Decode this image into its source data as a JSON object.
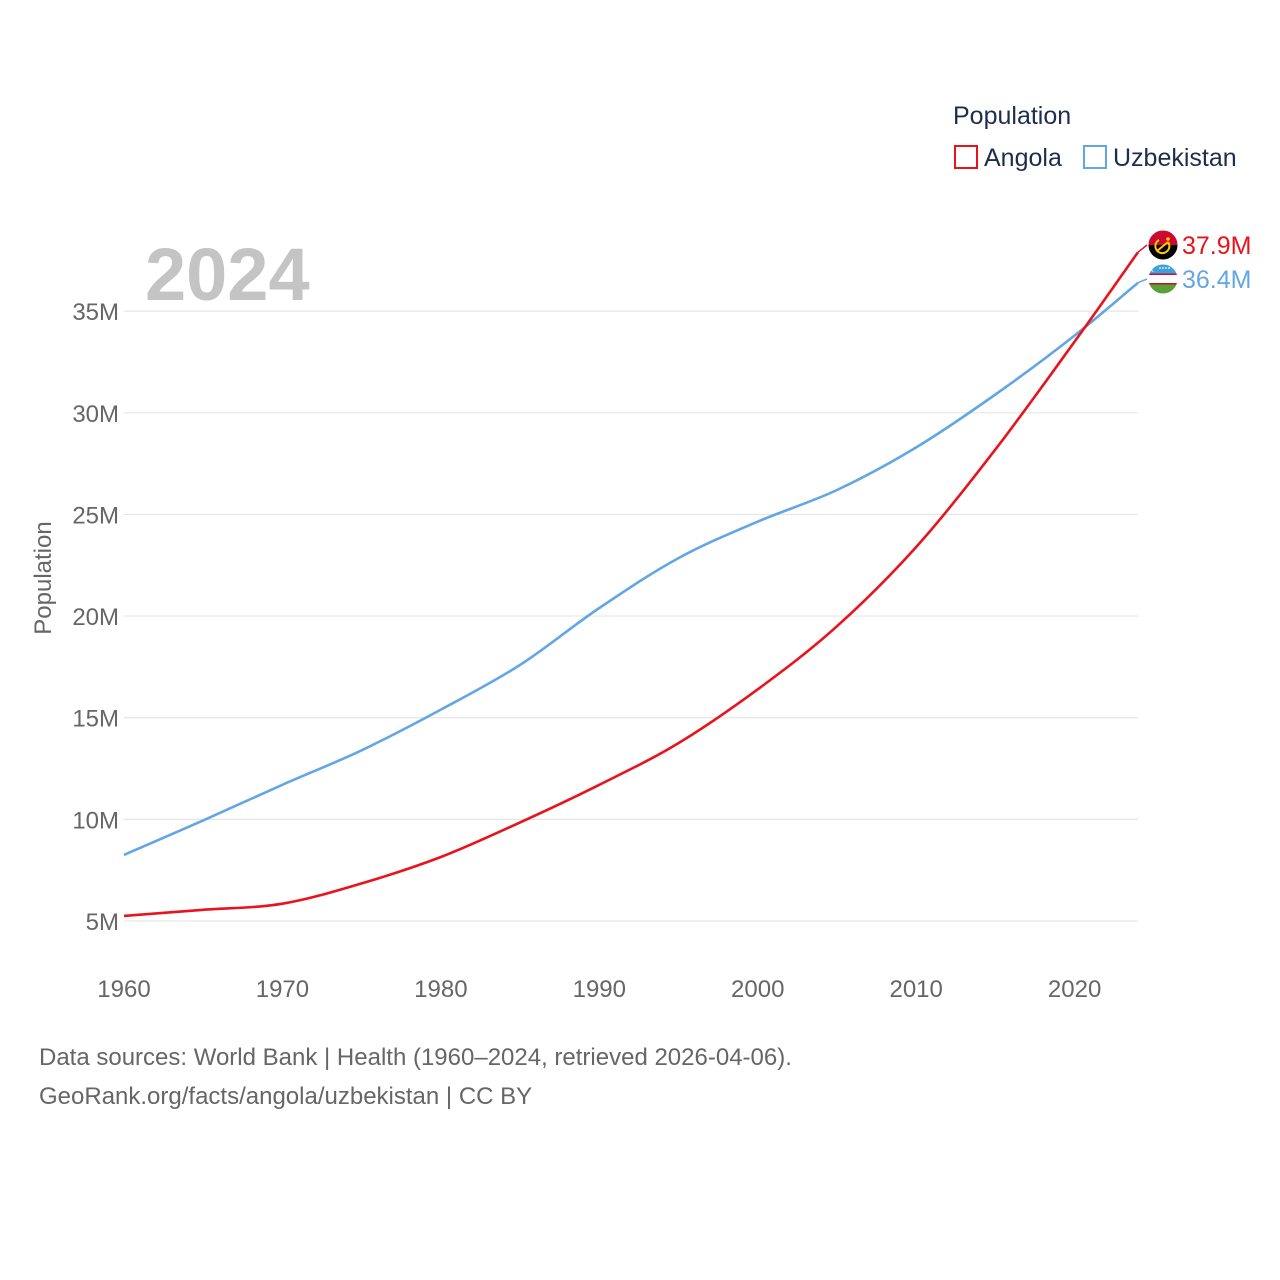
{
  "chart_data": {
    "type": "line",
    "year_watermark": "2024",
    "ylabel": "Population",
    "xlabel": "",
    "xlim": [
      1960,
      2024
    ],
    "ylim": [
      2000000,
      38500000
    ],
    "x_ticks": [
      1960,
      1970,
      1980,
      1990,
      2000,
      2010,
      2020
    ],
    "x_tick_labels": [
      "1960",
      "1970",
      "1980",
      "1990",
      "2000",
      "2010",
      "2020"
    ],
    "y_ticks": [
      5000000,
      10000000,
      15000000,
      20000000,
      25000000,
      30000000,
      35000000
    ],
    "y_tick_labels": [
      "5M",
      "10M",
      "15M",
      "20M",
      "25M",
      "30M",
      "35M"
    ],
    "grid": true,
    "legend": {
      "title": "Population",
      "placement": "top-right",
      "entries": [
        "Angola",
        "Uzbekistan"
      ]
    },
    "x": [
      1960,
      1965,
      1970,
      1975,
      1980,
      1985,
      1990,
      1995,
      2000,
      2005,
      2010,
      2015,
      2020,
      2024
    ],
    "series": [
      {
        "name": "Angola",
        "color": "#e8131b",
        "end_label": "37.9M",
        "flag_icon": "angola-flag-icon",
        "values": [
          5250000,
          5550000,
          5850000,
          6850000,
          8150000,
          9850000,
          11700000,
          13750000,
          16400000,
          19500000,
          23400000,
          28200000,
          33500000,
          37900000
        ]
      },
      {
        "name": "Uzbekistan",
        "color": "#64a6e3",
        "end_label": "36.4M",
        "flag_icon": "uzbekistan-flag-icon",
        "values": [
          8250000,
          9950000,
          11700000,
          13400000,
          15400000,
          17600000,
          20400000,
          22850000,
          24650000,
          26200000,
          28300000,
          30900000,
          33800000,
          36400000
        ]
      }
    ]
  },
  "footer": {
    "line1": "Data sources: World Bank | Health (1960–2024, retrieved 2026-04-06).",
    "line2": "GeoRank.org/facts/angola/uzbekistan | CC BY"
  }
}
